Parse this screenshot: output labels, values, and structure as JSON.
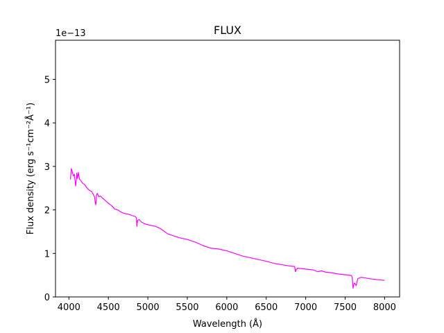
{
  "chart_data": {
    "type": "line",
    "title": "FLUX",
    "xlabel": "Wavelength (Å)",
    "ylabel": "Flux density (erg s⁻¹cm⁻²Å⁻¹)",
    "y_offset_text": "1e−13",
    "xlim": [
      3830,
      8190
    ],
    "ylim": [
      0,
      5.9
    ],
    "x_ticks": [
      4000,
      4500,
      5000,
      5500,
      6000,
      6500,
      7000,
      7500,
      8000
    ],
    "y_ticks": [
      0,
      1,
      2,
      3,
      4,
      5
    ],
    "grid": false,
    "series": [
      {
        "color": "#ff00ff",
        "x": [
          4020,
          4030,
          4040,
          4055,
          4070,
          4085,
          4095,
          4100,
          4110,
          4120,
          4135,
          4150,
          4170,
          4200,
          4230,
          4260,
          4290,
          4310,
          4325,
          4335,
          4340,
          4345,
          4350,
          4360,
          4380,
          4400,
          4420,
          4440,
          4460,
          4500,
          4540,
          4580,
          4620,
          4660,
          4700,
          4760,
          4800,
          4840,
          4855,
          4861,
          4870,
          4890,
          4920,
          4960,
          5000,
          5050,
          5100,
          5150,
          5200,
          5250,
          5300,
          5400,
          5500,
          5600,
          5700,
          5800,
          5900,
          6000,
          6100,
          6200,
          6300,
          6400,
          6500,
          6600,
          6700,
          6800,
          6860,
          6870,
          6880,
          6900,
          6950,
          7000,
          7050,
          7100,
          7150,
          7200,
          7250,
          7300,
          7350,
          7400,
          7450,
          7500,
          7550,
          7580,
          7590,
          7600,
          7610,
          7620,
          7640,
          7660,
          7700,
          7750,
          7800,
          7850,
          7900,
          7950,
          8000
        ],
        "y": [
          2.7,
          2.95,
          2.9,
          2.78,
          2.82,
          2.55,
          2.7,
          2.85,
          2.72,
          2.86,
          2.7,
          2.68,
          2.62,
          2.58,
          2.5,
          2.45,
          2.42,
          2.35,
          2.3,
          2.15,
          2.12,
          2.2,
          2.35,
          2.38,
          2.3,
          2.32,
          2.28,
          2.25,
          2.22,
          2.15,
          2.1,
          2.02,
          2.0,
          1.95,
          1.92,
          1.9,
          1.87,
          1.85,
          1.82,
          1.62,
          1.76,
          1.78,
          1.72,
          1.68,
          1.66,
          1.64,
          1.62,
          1.58,
          1.52,
          1.45,
          1.42,
          1.36,
          1.32,
          1.26,
          1.18,
          1.12,
          1.1,
          1.06,
          1.0,
          0.94,
          0.9,
          0.86,
          0.82,
          0.77,
          0.74,
          0.71,
          0.7,
          0.58,
          0.63,
          0.66,
          0.65,
          0.64,
          0.63,
          0.62,
          0.58,
          0.6,
          0.57,
          0.56,
          0.55,
          0.53,
          0.52,
          0.51,
          0.5,
          0.49,
          0.45,
          0.2,
          0.28,
          0.32,
          0.26,
          0.42,
          0.45,
          0.44,
          0.42,
          0.41,
          0.4,
          0.39,
          0.38
        ]
      }
    ]
  }
}
